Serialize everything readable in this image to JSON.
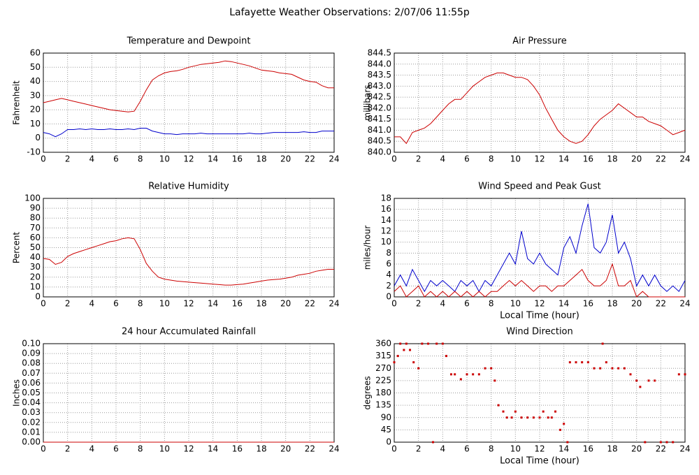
{
  "page_title": "Lafayette Weather Observations: 2/07/06 11:55p",
  "chart_data": [
    {
      "type": "line",
      "title": "Temperature and Dewpoint",
      "ylabel": "Fahrenheit",
      "x": [
        0,
        0.5,
        1,
        1.5,
        2,
        2.5,
        3,
        3.5,
        4,
        4.5,
        5,
        5.5,
        6,
        6.5,
        7,
        7.5,
        8,
        8.5,
        9,
        9.5,
        10,
        10.5,
        11,
        11.5,
        12,
        12.5,
        13,
        13.5,
        14,
        14.5,
        15,
        15.5,
        16,
        16.5,
        17,
        17.5,
        18,
        18.5,
        19,
        19.5,
        20,
        20.5,
        21,
        21.5,
        22,
        22.5,
        23,
        23.5,
        24
      ],
      "series": [
        {
          "color": "#cc0000",
          "values": [
            25,
            26,
            27,
            28,
            27,
            26,
            25,
            24,
            23,
            22,
            21,
            20,
            19.5,
            19,
            18.5,
            19,
            26,
            34,
            41,
            44,
            46,
            47,
            47.5,
            48.5,
            50,
            51,
            52,
            52.5,
            53,
            53.5,
            54.5,
            54,
            53,
            52,
            51,
            49.5,
            48,
            47.5,
            47,
            46,
            45.5,
            45,
            43,
            41,
            40,
            39.5,
            37,
            35.5,
            35.5
          ]
        },
        {
          "color": "#0000cc",
          "values": [
            4,
            3,
            1,
            3,
            6,
            6,
            6.5,
            6,
            6.5,
            6,
            6,
            6.5,
            6,
            6,
            6.5,
            6,
            7,
            7,
            5,
            4,
            3,
            3,
            2.5,
            3,
            3,
            3,
            3.5,
            3,
            3,
            3,
            3,
            3,
            3,
            3,
            3.5,
            3,
            3,
            3.5,
            4,
            4,
            4,
            4,
            4,
            4.5,
            4,
            4,
            5,
            5,
            5
          ]
        }
      ],
      "xlim": [
        0,
        24
      ],
      "xticks": [
        0,
        2,
        4,
        6,
        8,
        10,
        12,
        14,
        16,
        18,
        20,
        22,
        24
      ],
      "ylim": [
        -10,
        60
      ],
      "yticks": [
        -10,
        0,
        10,
        20,
        30,
        40,
        50,
        60
      ],
      "grid": true
    },
    {
      "type": "line",
      "title": "Air Pressure",
      "ylabel": "millibars",
      "x": [
        0,
        0.5,
        1,
        1.5,
        2,
        2.5,
        3,
        3.5,
        4,
        4.5,
        5,
        5.5,
        6,
        6.5,
        7,
        7.5,
        8,
        8.5,
        9,
        9.5,
        10,
        10.5,
        11,
        11.5,
        12,
        12.5,
        13,
        13.5,
        14,
        14.5,
        15,
        15.5,
        16,
        16.5,
        17,
        17.5,
        18,
        18.5,
        19,
        19.5,
        20,
        20.5,
        21,
        21.5,
        22,
        22.5,
        23,
        23.5,
        24
      ],
      "series": [
        {
          "color": "#cc0000",
          "values": [
            840.7,
            840.7,
            840.4,
            840.9,
            841.0,
            841.1,
            841.3,
            841.6,
            841.9,
            842.2,
            842.4,
            842.4,
            842.7,
            843.0,
            843.2,
            843.4,
            843.5,
            843.6,
            843.6,
            843.5,
            843.4,
            843.4,
            843.3,
            843.0,
            842.6,
            842.0,
            841.5,
            841.0,
            840.7,
            840.5,
            840.4,
            840.5,
            840.8,
            841.2,
            841.5,
            841.7,
            841.9,
            842.2,
            842.0,
            841.8,
            841.6,
            841.6,
            841.4,
            841.3,
            841.2,
            841.0,
            840.8,
            840.9,
            841.0
          ]
        }
      ],
      "xlim": [
        0,
        24
      ],
      "xticks": [
        0,
        2,
        4,
        6,
        8,
        10,
        12,
        14,
        16,
        18,
        20,
        22,
        24
      ],
      "ylim": [
        840,
        844.5
      ],
      "yticks": [
        {
          "value": 840,
          "label": "840.0"
        },
        840.5,
        {
          "value": 841,
          "label": "841.0"
        },
        841.5,
        {
          "value": 842,
          "label": "842.0"
        },
        842.5,
        {
          "value": 843,
          "label": "843.0"
        },
        843.5,
        {
          "value": 844,
          "label": "844.0"
        },
        844.5
      ],
      "grid": true
    },
    {
      "type": "line",
      "title": "Relative Humidity",
      "ylabel": "Percent",
      "x": [
        0,
        0.5,
        1,
        1.5,
        2,
        2.5,
        3,
        3.5,
        4,
        4.5,
        5,
        5.5,
        6,
        6.5,
        7,
        7.5,
        8,
        8.5,
        9,
        9.5,
        10,
        10.5,
        11,
        11.5,
        12,
        12.5,
        13,
        13.5,
        14,
        14.5,
        15,
        15.5,
        16,
        16.5,
        17,
        17.5,
        18,
        18.5,
        19,
        19.5,
        20,
        20.5,
        21,
        21.5,
        22,
        22.5,
        23,
        23.5,
        24
      ],
      "series": [
        {
          "color": "#cc0000",
          "values": [
            39,
            38,
            33,
            35,
            41,
            44,
            46,
            48,
            50,
            52,
            54,
            56,
            57,
            59,
            60,
            59,
            48,
            34,
            26,
            20,
            18,
            17,
            16,
            15.5,
            15,
            14.5,
            14,
            13.5,
            13,
            12.5,
            12,
            12,
            12.5,
            13,
            14,
            15,
            16,
            17,
            17.5,
            18,
            19,
            20,
            22,
            23,
            24,
            26,
            27,
            28,
            28
          ]
        }
      ],
      "xlim": [
        0,
        24
      ],
      "xticks": [
        0,
        2,
        4,
        6,
        8,
        10,
        12,
        14,
        16,
        18,
        20,
        22,
        24
      ],
      "ylim": [
        0,
        100
      ],
      "yticks": [
        0,
        10,
        20,
        30,
        40,
        50,
        60,
        70,
        80,
        90,
        100
      ],
      "grid": true
    },
    {
      "type": "line",
      "title": "Wind Speed and Peak Gust",
      "ylabel": "miles/hour",
      "xlabel": "Local Time (hour)",
      "x": [
        0,
        0.5,
        1,
        1.5,
        2,
        2.5,
        3,
        3.5,
        4,
        4.5,
        5,
        5.5,
        6,
        6.5,
        7,
        7.5,
        8,
        8.5,
        9,
        9.5,
        10,
        10.5,
        11,
        11.5,
        12,
        12.5,
        13,
        13.5,
        14,
        14.5,
        15,
        15.5,
        16,
        16.5,
        17,
        17.5,
        18,
        18.5,
        19,
        19.5,
        20,
        20.5,
        21,
        21.5,
        22,
        22.5,
        23,
        23.5,
        24
      ],
      "series": [
        {
          "color": "#0000cc",
          "values": [
            2,
            4,
            2,
            5,
            3,
            1,
            3,
            2,
            3,
            2,
            1,
            3,
            2,
            3,
            1,
            3,
            2,
            4,
            6,
            8,
            6,
            12,
            7,
            6,
            8,
            6,
            5,
            4,
            9,
            11,
            8,
            13,
            17,
            9,
            8,
            10,
            15,
            8,
            10,
            7,
            2,
            4,
            2,
            4,
            2,
            1,
            2,
            1,
            3
          ]
        },
        {
          "color": "#cc0000",
          "values": [
            1,
            2,
            0,
            1,
            2,
            0,
            1,
            0,
            1,
            0,
            1,
            0,
            1,
            0,
            1,
            0,
            1,
            1,
            2,
            3,
            2,
            3,
            2,
            1,
            2,
            2,
            1,
            2,
            2,
            3,
            4,
            5,
            3,
            2,
            2,
            3,
            6,
            2,
            2,
            3,
            0,
            1,
            0,
            0,
            0,
            0,
            0,
            0,
            0
          ]
        }
      ],
      "xlim": [
        0,
        24
      ],
      "xticks": [
        0,
        2,
        4,
        6,
        8,
        10,
        12,
        14,
        16,
        18,
        20,
        22,
        24
      ],
      "ylim": [
        0,
        18
      ],
      "yticks": [
        0,
        2,
        4,
        6,
        8,
        10,
        12,
        14,
        16,
        18
      ],
      "grid": true
    },
    {
      "type": "line",
      "title": "24 hour Accumulated Rainfall",
      "ylabel": "Inches",
      "x": [
        0,
        24
      ],
      "series": [
        {
          "color": "#cc0000",
          "values": [
            0,
            0
          ]
        }
      ],
      "xlim": [
        0,
        24
      ],
      "xticks": [
        0,
        2,
        4,
        6,
        8,
        10,
        12,
        14,
        16,
        18,
        20,
        22,
        24
      ],
      "ylim": [
        0,
        0.1
      ],
      "yticks": [
        {
          "value": 0,
          "label": "0.00"
        },
        0.01,
        0.02,
        0.03,
        0.04,
        0.05,
        0.06,
        0.07,
        0.08,
        0.09,
        {
          "value": 0.1,
          "label": "0.10"
        }
      ],
      "grid": true
    },
    {
      "type": "scatter",
      "title": "Wind Direction",
      "ylabel": "degrees",
      "xlabel": "Local Time (hour)",
      "x": [
        0,
        0.3,
        0.5,
        0.8,
        1,
        1.3,
        1.6,
        2,
        2.3,
        2.8,
        3.2,
        3.5,
        4,
        4.3,
        4.7,
        5,
        5.5,
        6,
        6.5,
        7,
        7.5,
        8,
        8.3,
        8.6,
        9,
        9.3,
        9.7,
        10,
        10.5,
        11,
        11.5,
        12,
        12.3,
        12.7,
        13,
        13.3,
        13.7,
        14,
        14.3,
        14.5,
        15,
        15.5,
        16,
        16.5,
        17,
        17.2,
        17.5,
        18,
        18.5,
        19,
        19.5,
        20,
        20.3,
        20.7,
        21,
        21.5,
        22,
        22.5,
        23,
        23.5,
        24
      ],
      "series": [
        {
          "color": "#cc0000",
          "values": [
            292,
            315,
            360,
            337,
            360,
            337,
            292,
            270,
            360,
            360,
            0,
            360,
            360,
            315,
            248,
            248,
            230,
            248,
            248,
            248,
            270,
            270,
            225,
            135,
            112,
            90,
            90,
            112,
            90,
            90,
            90,
            90,
            112,
            90,
            90,
            112,
            45,
            67,
            0,
            292,
            292,
            292,
            292,
            270,
            270,
            360,
            292,
            270,
            270,
            270,
            248,
            225,
            202,
            0,
            225,
            225,
            0,
            0,
            0,
            248,
            248
          ]
        }
      ],
      "xlim": [
        0,
        24
      ],
      "xticks": [
        0,
        2,
        4,
        6,
        8,
        10,
        12,
        14,
        16,
        18,
        20,
        22,
        24
      ],
      "ylim": [
        0,
        360
      ],
      "yticks": [
        0,
        45,
        90,
        135,
        180,
        225,
        270,
        315,
        360
      ],
      "grid": true
    }
  ]
}
